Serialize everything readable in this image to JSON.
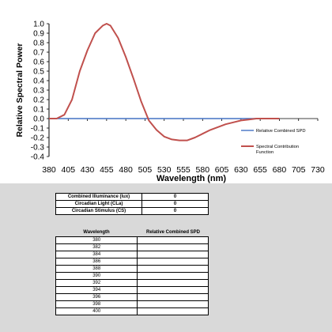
{
  "chart_data": {
    "type": "line",
    "title": "",
    "xlabel": "Wavelength (nm)",
    "ylabel": "Relative Spectral Power",
    "xlim": [
      380,
      730
    ],
    "ylim": [
      -0.4,
      1.0
    ],
    "x_ticks": [
      "380",
      "405",
      "430",
      "455",
      "480",
      "505",
      "530",
      "555",
      "580",
      "605",
      "630",
      "655",
      "680",
      "705",
      "730"
    ],
    "y_ticks": [
      "1.0",
      "0.9",
      "0.8",
      "0.7",
      "0.6",
      "0.5",
      "0.4",
      "0.3",
      "0.2",
      "0.1",
      "0.0",
      "-0.1",
      "-0.2",
      "-0.3",
      "-0.4"
    ],
    "legend_position": "right",
    "series": [
      {
        "name": "Relative Combined SPD",
        "color": "#4472c4",
        "x": [
          380,
          680
        ],
        "y": [
          0.0,
          0.0
        ]
      },
      {
        "name": "Spectral Contribution Function",
        "color": "#c0504d",
        "x": [
          380,
          390,
          400,
          410,
          420,
          430,
          440,
          450,
          455,
          460,
          470,
          480,
          490,
          500,
          510,
          520,
          530,
          540,
          550,
          560,
          570,
          580,
          590,
          600,
          610,
          620,
          630,
          640,
          650,
          660,
          670,
          680
        ],
        "y": [
          0.0,
          0.0,
          0.04,
          0.2,
          0.5,
          0.72,
          0.9,
          0.98,
          1.0,
          0.98,
          0.85,
          0.65,
          0.42,
          0.18,
          -0.02,
          -0.12,
          -0.19,
          -0.22,
          -0.23,
          -0.23,
          -0.2,
          -0.16,
          -0.12,
          -0.09,
          -0.06,
          -0.04,
          -0.02,
          -0.01,
          0.0,
          0.0,
          0.0,
          0.0
        ]
      }
    ]
  },
  "summary": [
    {
      "label": "Combined Illuminance (lux)",
      "value": "0"
    },
    {
      "label": "Circadian Light (CLa)",
      "value": "0"
    },
    {
      "label": "Circadian Stimulus (CS)",
      "value": "0"
    }
  ],
  "data_table": {
    "headers": [
      "Wavelength",
      "Relative Combined SPD"
    ],
    "rows": [
      "380",
      "382",
      "384",
      "386",
      "388",
      "390",
      "392",
      "394",
      "396",
      "398",
      "400"
    ]
  }
}
